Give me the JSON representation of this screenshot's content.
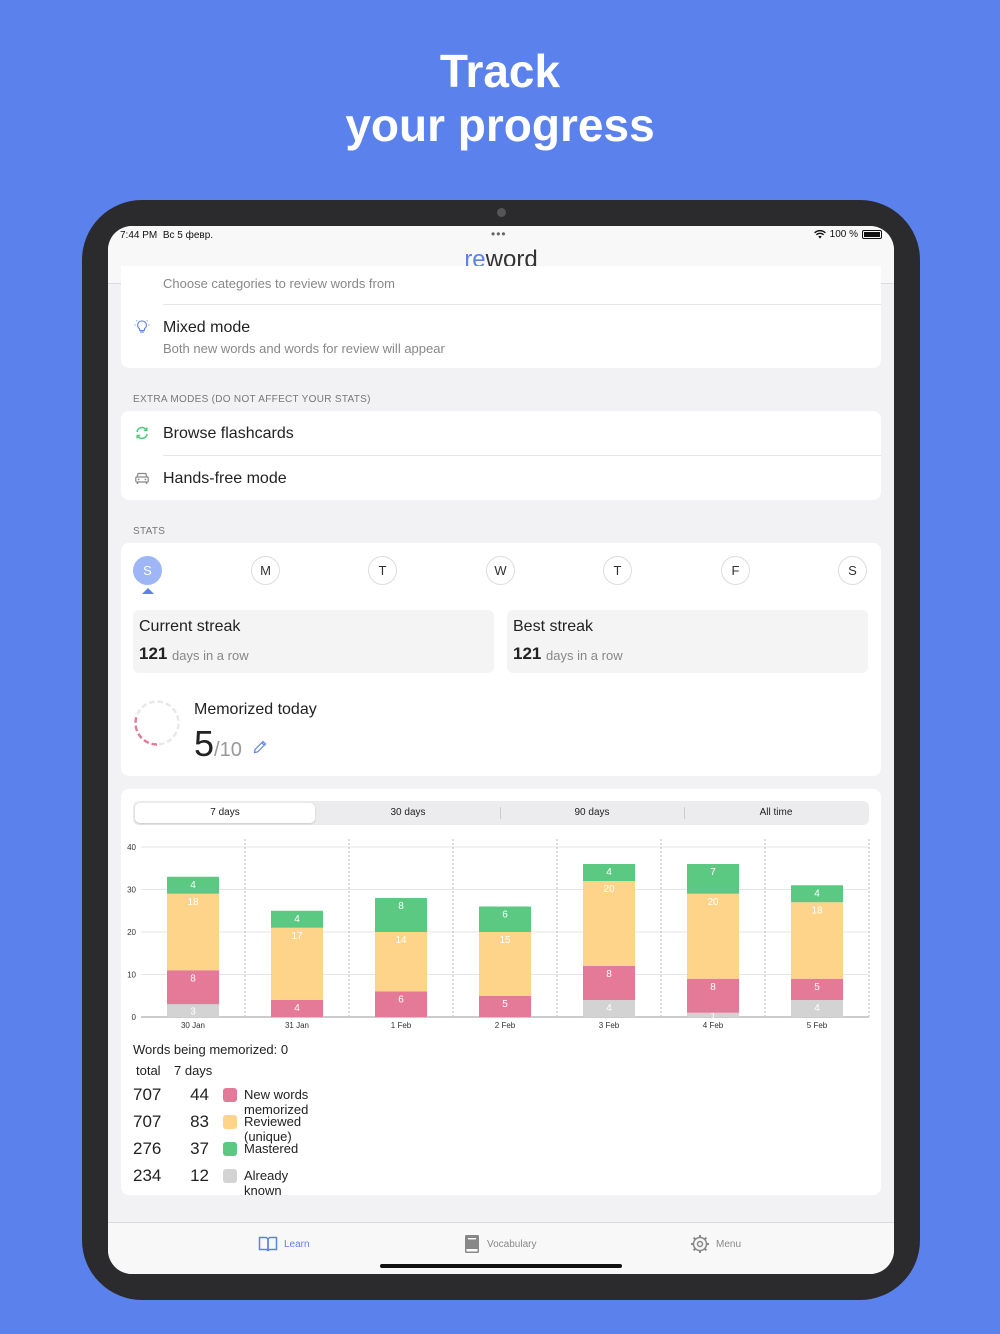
{
  "headline": {
    "line1": "Track",
    "line2": "your progress"
  },
  "status_bar": {
    "time": "7:44 PM",
    "date": "Вс 5 февр.",
    "battery": "100 %"
  },
  "app": {
    "logo_prefix": "re",
    "logo_suffix": "word"
  },
  "modes": {
    "cut_subtitle": "Choose categories to review words from",
    "mixed_title": "Mixed mode",
    "mixed_subtitle": "Both new words and words for review will appear"
  },
  "extra_modes": {
    "label": "EXTRA MODES (DO NOT AFFECT YOUR STATS)",
    "browse_label": "Browse flashcards",
    "handsfree_label": "Hands-free mode"
  },
  "stats": {
    "label": "STATS",
    "days": [
      "S",
      "M",
      "T",
      "W",
      "T",
      "F",
      "S"
    ],
    "current_streak_title": "Current streak",
    "current_streak_value": "121",
    "current_streak_suffix": "days in a row",
    "best_streak_title": "Best streak",
    "best_streak_value": "121",
    "best_streak_suffix": "days in a row",
    "memorized_title": "Memorized today",
    "memorized_value": "5",
    "memorized_goal": "/10"
  },
  "range_tabs": [
    "7 days",
    "30 days",
    "90 days",
    "All time"
  ],
  "colors": {
    "new": "#e47a98",
    "reviewed": "#fdd489",
    "mastered": "#5cc983",
    "known": "#d3d3d3",
    "accent": "#5b82ec"
  },
  "chart_data": {
    "type": "bar",
    "stacked": true,
    "categories": [
      "30 Jan",
      "31 Jan",
      "1 Feb",
      "2 Feb",
      "3 Feb",
      "4 Feb",
      "5 Feb"
    ],
    "series": [
      {
        "name": "Already known",
        "values": [
          3,
          0,
          0,
          0,
          4,
          1,
          4
        ]
      },
      {
        "name": "New words memorized",
        "values": [
          8,
          4,
          6,
          5,
          8,
          8,
          5
        ]
      },
      {
        "name": "Reviewed (unique)",
        "values": [
          18,
          17,
          14,
          15,
          20,
          20,
          18
        ]
      },
      {
        "name": "Mastered",
        "values": [
          4,
          4,
          8,
          6,
          4,
          7,
          4
        ]
      }
    ],
    "ylim": [
      0,
      40
    ],
    "yticks": [
      0,
      10,
      20,
      30,
      40
    ]
  },
  "summary": {
    "memorizing": "Words being memorized: 0",
    "col_total": "total",
    "col_days": "7 days",
    "rows": [
      {
        "total": "707",
        "days": "44",
        "label": "New words memorized"
      },
      {
        "total": "707",
        "days": "83",
        "label": "Reviewed (unique)"
      },
      {
        "total": "276",
        "days": "37",
        "label": "Mastered"
      },
      {
        "total": "234",
        "days": "12",
        "label": "Already known"
      }
    ]
  },
  "tabbar": {
    "learn": "Learn",
    "vocabulary": "Vocabulary",
    "menu": "Menu"
  }
}
